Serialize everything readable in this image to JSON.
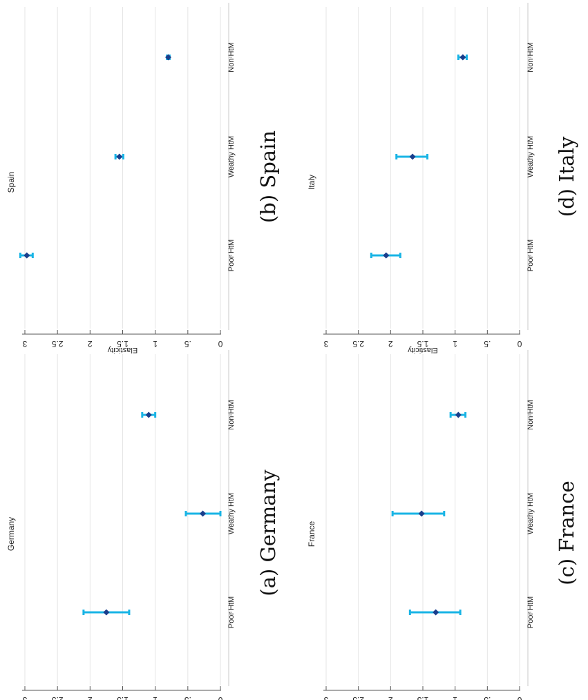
{
  "chart_data": [
    {
      "type": "errorbar",
      "title": "Germany",
      "caption": "(a) Germany",
      "ylabel": "Elasticity",
      "ylim": [
        0,
        3
      ],
      "yticks": [
        "0",
        ".5",
        "1",
        "1.5",
        "2",
        "2.5",
        "3"
      ],
      "categories": [
        "Poor HtM",
        "Weathy HtM",
        "Non HtM"
      ],
      "values": [
        1.75,
        0.27,
        1.1
      ],
      "ci_low": [
        1.4,
        0.0,
        1.0
      ],
      "ci_high": [
        2.1,
        0.53,
        1.2
      ],
      "grid": true,
      "point_color": "#1a3e8c",
      "ci_color": "#18b4e5"
    },
    {
      "type": "errorbar",
      "title": "Spain",
      "caption": "(b) Spain",
      "ylabel": "Elasticity",
      "ylim": [
        0,
        3
      ],
      "yticks": [
        "0",
        ".5",
        "1",
        "1.5",
        "2",
        "2.5",
        "3"
      ],
      "categories": [
        "Poor HtM",
        "Weathy HtM",
        "Non HtM"
      ],
      "values": [
        2.97,
        1.55,
        0.8
      ],
      "ci_low": [
        2.88,
        1.49,
        0.78
      ],
      "ci_high": [
        3.07,
        1.61,
        0.82
      ],
      "grid": true,
      "point_color": "#1a3e8c",
      "ci_color": "#18b4e5"
    },
    {
      "type": "errorbar",
      "title": "France",
      "caption": "(c) France",
      "ylabel": "Elasticity",
      "ylim": [
        0,
        3
      ],
      "yticks": [
        "0",
        ".5",
        "1",
        "1.5",
        "2",
        "2.5",
        "3"
      ],
      "categories": [
        "Poor HtM",
        "Weathy HtM",
        "Non HtM"
      ],
      "values": [
        1.3,
        1.52,
        0.95
      ],
      "ci_low": [
        0.92,
        1.17,
        0.84
      ],
      "ci_high": [
        1.7,
        1.97,
        1.07
      ],
      "grid": true,
      "point_color": "#1a3e8c",
      "ci_color": "#18b4e5"
    },
    {
      "type": "errorbar",
      "title": "Italy",
      "caption": "(d) Italy",
      "ylabel": "Elasticity",
      "ylim": [
        0,
        3
      ],
      "yticks": [
        "0",
        ".5",
        "1",
        "1.5",
        "2",
        "2.5",
        "3"
      ],
      "categories": [
        "Poor HtM",
        "Weathy HtM",
        "Non HtM"
      ],
      "values": [
        2.07,
        1.66,
        0.88
      ],
      "ci_low": [
        1.85,
        1.43,
        0.82
      ],
      "ci_high": [
        2.3,
        1.91,
        0.95
      ],
      "grid": true,
      "point_color": "#1a3e8c",
      "ci_color": "#18b4e5"
    }
  ]
}
